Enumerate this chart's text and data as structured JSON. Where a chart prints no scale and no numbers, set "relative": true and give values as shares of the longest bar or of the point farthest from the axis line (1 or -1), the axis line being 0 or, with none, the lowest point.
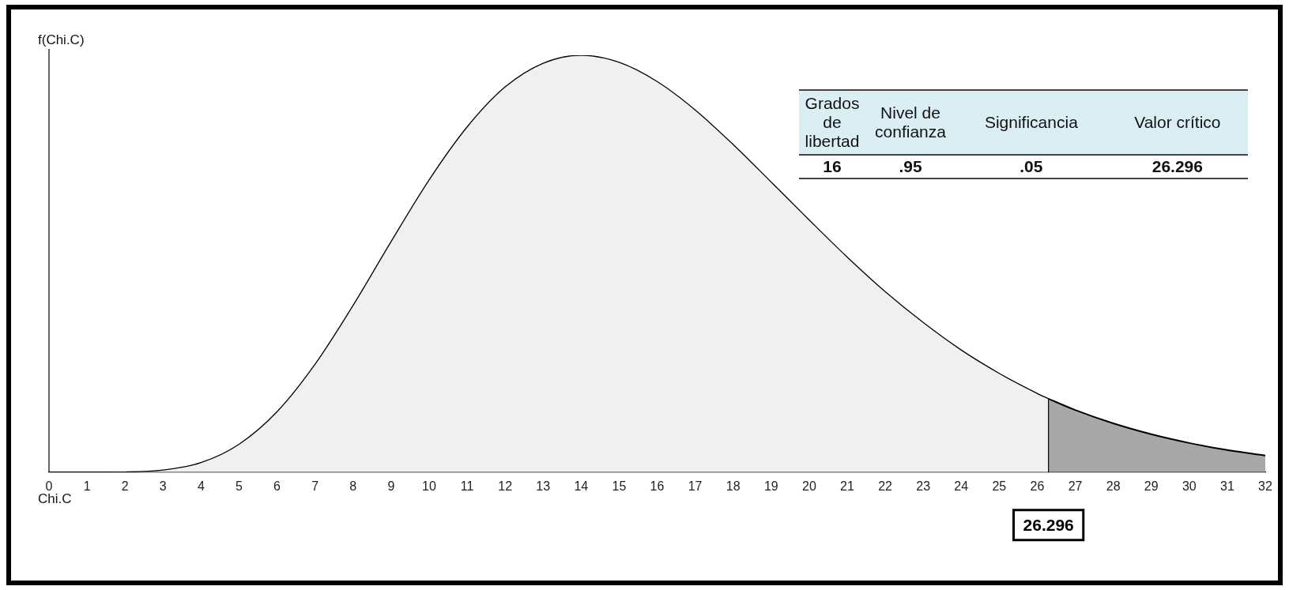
{
  "chart_data": [
    {
      "type": "area",
      "relative": true,
      "xlabel": "Chi.C",
      "ylabel": "f(Chi.C)",
      "xlim": [
        0,
        32
      ],
      "xticks": [
        0,
        1,
        2,
        3,
        4,
        5,
        6,
        7,
        8,
        9,
        10,
        11,
        12,
        13,
        14,
        15,
        16,
        17,
        18,
        19,
        20,
        21,
        22,
        23,
        24,
        25,
        26,
        27,
        28,
        29,
        30,
        31,
        32
      ],
      "grid": false,
      "legend": false,
      "marker": "none",
      "series": [
        {
          "color": "#f0f0f0",
          "x": [
            0,
            1,
            2,
            3,
            4,
            5,
            6,
            7,
            8,
            9,
            10,
            11,
            12,
            13,
            14,
            15,
            16,
            17,
            18,
            19,
            20,
            21,
            22,
            23,
            24,
            25,
            26,
            26.296
          ],
          "values": [
            0,
            0,
            0.0005,
            0.005,
            0.023,
            0.067,
            0.145,
            0.259,
            0.4,
            0.553,
            0.701,
            0.828,
            0.924,
            0.981,
            1,
            0.983,
            0.937,
            0.869,
            0.786,
            0.696,
            0.605,
            0.516,
            0.433,
            0.359,
            0.293,
            0.237,
            0.189,
            0.176
          ]
        },
        {
          "color": "#a8a8a8",
          "x": [
            26.296,
            27,
            28,
            29,
            30,
            31,
            32
          ],
          "values": [
            0.176,
            0.149,
            0.117,
            0.091,
            0.07,
            0.053,
            0.04
          ]
        }
      ],
      "ref_lines": [
        {
          "axis": "x",
          "value": 26.296,
          "label": "26.296"
        }
      ]
    },
    {
      "type": "other",
      "annotations": [
        "Grados de libertad",
        "Nivel de confianza",
        "Significancia",
        "Valor crítico",
        "16",
        ".95",
        ".05",
        "26.296"
      ]
    }
  ]
}
